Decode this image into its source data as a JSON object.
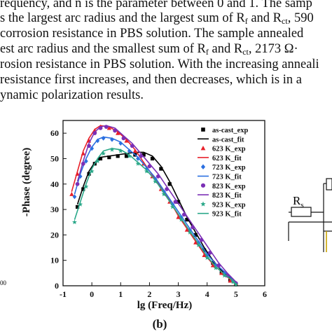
{
  "paragraph": {
    "lines": [
      {
        "parts": [
          {
            "t": "requency, and n is the parameter between 0 and 1. The samp"
          }
        ]
      },
      {
        "parts": [
          {
            "t": "s the largest arc radius and the largest sum of R"
          },
          {
            "sub": "f"
          },
          {
            "t": " and R"
          },
          {
            "sub": "ct"
          },
          {
            "t": ", 590"
          }
        ]
      },
      {
        "parts": [
          {
            "t": "corrosion resistance in PBS solution.  The sample annealed"
          }
        ]
      },
      {
        "parts": [
          {
            "t": "est arc radius and the smallest sum of R"
          },
          {
            "sub": "f"
          },
          {
            "t": " and R"
          },
          {
            "sub": "ct"
          },
          {
            "t": ", 2173 Ω·"
          }
        ]
      },
      {
        "parts": [
          {
            "t": "rosion resistance in PBS solution. With the increasing anneali"
          }
        ]
      },
      {
        "parts": [
          {
            "t": "resistance first increases, and then decreases, which is in a"
          }
        ]
      },
      {
        "parts": [
          {
            "t": "ynamic polarization results."
          }
        ]
      }
    ]
  },
  "panel_label": "(b)",
  "circuit_label": {
    "main": "R",
    "sub": "s"
  },
  "left_fragment": "00",
  "chart_data": {
    "type": "scatter",
    "xlabel": "lg (Freq/Hz)",
    "ylabel": "-Phase (degree)",
    "xlim": [
      -1,
      6
    ],
    "ylim": [
      0,
      65
    ],
    "xticks": [
      "-1",
      "0",
      "1",
      "2",
      "3",
      "4",
      "5",
      "6"
    ],
    "yticks": [
      "0",
      "10",
      "20",
      "30",
      "40",
      "50",
      "60"
    ],
    "grid": false,
    "legend_position": "top-right",
    "legend": [
      {
        "label": "as-cast_exp",
        "color": "#000000",
        "marker": "square"
      },
      {
        "label": "as-cast_fit",
        "color": "#000000",
        "marker": "line"
      },
      {
        "label": "623 K_exp",
        "color": "#e8202a",
        "marker": "triangle-up"
      },
      {
        "label": "623 K_fit",
        "color": "#e8202a",
        "marker": "line"
      },
      {
        "label": "723 K_exp",
        "color": "#2b6fe0",
        "marker": "diamond"
      },
      {
        "label": "723 K_fit",
        "color": "#2b6fe0",
        "marker": "line"
      },
      {
        "label": "823 K_exp",
        "color": "#7b2fb5",
        "marker": "circle"
      },
      {
        "label": "823 K_fit",
        "color": "#7b2fb5",
        "marker": "line"
      },
      {
        "label": "923 K_exp",
        "color": "#2aa889",
        "marker": "star"
      },
      {
        "label": "923 K_fit",
        "color": "#2aa889",
        "marker": "line"
      }
    ],
    "series": [
      {
        "color": "#000000",
        "marker": "square",
        "x": [
          -0.5,
          -0.3,
          -0.1,
          0.1,
          0.3,
          0.6,
          0.9,
          1.2,
          1.5,
          1.8,
          2.1,
          2.4,
          2.7,
          3.0,
          3.3,
          3.6,
          3.9,
          4.2,
          4.5,
          4.8,
          5.0
        ],
        "y": [
          31,
          38,
          44,
          48,
          50,
          50.5,
          51,
          51,
          51.5,
          51.5,
          50,
          46,
          40,
          33,
          26,
          20,
          14,
          9,
          5,
          2,
          0.5
        ]
      },
      {
        "color": "#000000",
        "marker": "line",
        "x": [
          -0.5,
          -0.3,
          -0.1,
          0.1,
          0.3,
          0.6,
          0.9,
          1.2,
          1.5,
          1.8,
          2.1,
          2.4,
          2.7,
          3.0,
          3.3,
          3.6,
          3.9,
          4.2,
          4.5,
          4.8,
          5.0
        ],
        "y": [
          32,
          39,
          45,
          48.5,
          50.5,
          51,
          51.5,
          52,
          52.5,
          52.5,
          51,
          47,
          41,
          34,
          27,
          21,
          15,
          10,
          6,
          3,
          1
        ]
      },
      {
        "color": "#e8202a",
        "marker": "triangle-up",
        "x": [
          -0.7,
          -0.5,
          -0.3,
          -0.1,
          0.1,
          0.3,
          0.6,
          0.9,
          1.2,
          1.5,
          1.8,
          2.1,
          2.4,
          2.7,
          3.0,
          3.3,
          3.6,
          3.9,
          4.2,
          4.5,
          4.8,
          5.0
        ],
        "y": [
          36,
          44,
          52,
          57,
          61,
          62.5,
          62,
          60,
          57,
          53,
          48,
          43,
          38,
          33,
          27,
          22,
          17,
          12,
          8,
          5,
          2,
          1
        ]
      },
      {
        "color": "#e8202a",
        "marker": "line",
        "x": [
          -0.7,
          -0.5,
          -0.3,
          -0.1,
          0.1,
          0.3,
          0.6,
          0.9,
          1.2,
          1.5,
          1.8,
          2.1,
          2.4,
          2.7,
          3.0,
          3.3,
          3.6,
          3.9,
          4.2,
          4.5,
          4.8,
          5.0
        ],
        "y": [
          37,
          45,
          53,
          58,
          61.5,
          63,
          62.5,
          60.5,
          57.5,
          53.5,
          48.5,
          43.5,
          38.5,
          33.5,
          27.5,
          22.5,
          17.5,
          12.5,
          8.5,
          5.5,
          2.5,
          1
        ]
      },
      {
        "color": "#2b6fe0",
        "marker": "diamond",
        "x": [
          -0.6,
          -0.4,
          -0.2,
          0.0,
          0.2,
          0.4,
          0.7,
          1.0,
          1.3,
          1.6,
          1.9,
          2.2,
          2.5,
          2.8,
          3.1,
          3.4,
          3.7,
          4.0,
          4.3,
          4.6,
          4.9,
          5.0
        ],
        "y": [
          35,
          43,
          49,
          54,
          57,
          58,
          57.5,
          56,
          53,
          50,
          46,
          42,
          37,
          32,
          27,
          22,
          17,
          12,
          8,
          5,
          2,
          1
        ]
      },
      {
        "color": "#2b6fe0",
        "marker": "line",
        "x": [
          -0.6,
          -0.4,
          -0.2,
          0.0,
          0.2,
          0.4,
          0.7,
          1.0,
          1.3,
          1.6,
          1.9,
          2.2,
          2.5,
          2.8,
          3.1,
          3.4,
          3.7,
          4.0,
          4.3,
          4.6,
          4.9,
          5.0
        ],
        "y": [
          36,
          44,
          50,
          54.5,
          57.5,
          58.5,
          58,
          56.5,
          53.5,
          50.5,
          46.5,
          42.5,
          37.5,
          32.5,
          27.5,
          22.5,
          17.5,
          12.5,
          8.5,
          5.5,
          2.5,
          1
        ]
      },
      {
        "color": "#7b2fb5",
        "marker": "circle",
        "x": [
          -0.5,
          -0.3,
          -0.1,
          0.1,
          0.3,
          0.5,
          0.8,
          1.1,
          1.4,
          1.7,
          2.0,
          2.3,
          2.6,
          2.9,
          3.2,
          3.5,
          3.8,
          4.1,
          4.4,
          4.7,
          5.0
        ],
        "y": [
          40,
          48,
          55,
          60,
          62,
          62.5,
          61,
          58,
          55,
          51,
          47,
          43,
          38,
          33,
          28,
          23,
          18,
          13,
          8,
          4,
          1
        ]
      },
      {
        "color": "#7b2fb5",
        "marker": "line",
        "x": [
          -0.5,
          -0.3,
          -0.1,
          0.1,
          0.3,
          0.5,
          0.8,
          1.1,
          1.4,
          1.7,
          2.0,
          2.3,
          2.6,
          2.9,
          3.2,
          3.5,
          3.8,
          4.1,
          4.4,
          4.7,
          5.0
        ],
        "y": [
          41,
          49,
          56,
          60.5,
          62.5,
          63,
          62,
          59,
          56,
          52,
          48,
          44,
          39,
          34,
          29,
          24,
          19,
          14,
          9,
          5,
          1.5
        ]
      },
      {
        "color": "#2aa889",
        "marker": "star",
        "x": [
          -0.6,
          -0.4,
          -0.2,
          0.0,
          0.2,
          0.4,
          0.7,
          1.0,
          1.3,
          1.6,
          1.9,
          2.2,
          2.5,
          2.8,
          3.1,
          3.4,
          3.7,
          4.0,
          4.3,
          4.6,
          4.9,
          5.0
        ],
        "y": [
          25,
          32,
          39,
          45,
          49,
          52,
          53.5,
          53,
          51,
          48,
          45,
          41,
          36,
          31,
          26,
          21,
          16,
          11,
          7,
          4,
          1.5,
          0.5
        ]
      },
      {
        "color": "#2aa889",
        "marker": "line",
        "x": [
          -0.6,
          -0.4,
          -0.2,
          0.0,
          0.2,
          0.4,
          0.7,
          1.0,
          1.3,
          1.6,
          1.9,
          2.2,
          2.5,
          2.8,
          3.1,
          3.4,
          3.7,
          4.0,
          4.3,
          4.6,
          4.9,
          5.0
        ],
        "y": [
          26,
          33,
          40,
          46,
          50,
          53,
          54,
          53.5,
          51.5,
          48.5,
          45.5,
          41.5,
          36.5,
          31.5,
          26.5,
          21.5,
          16.5,
          11.5,
          7.5,
          4.5,
          2,
          0.5
        ]
      }
    ]
  }
}
